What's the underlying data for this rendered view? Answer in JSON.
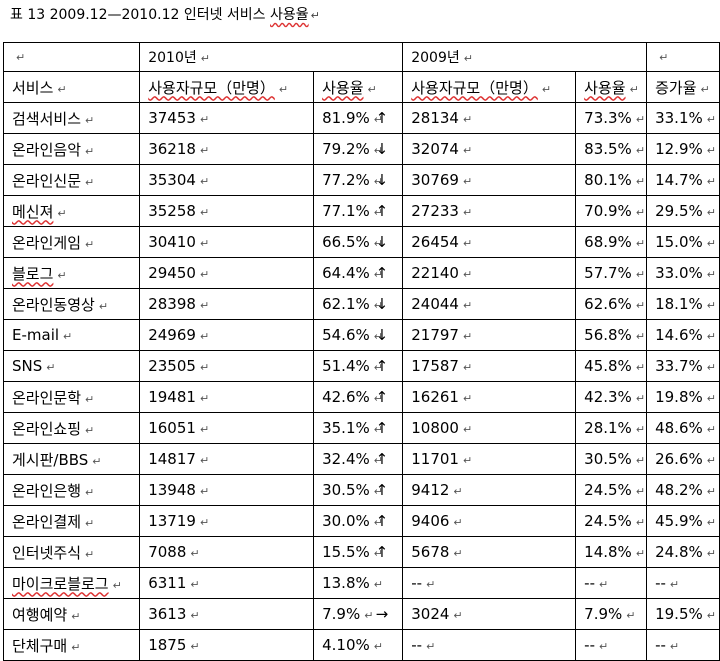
{
  "caption": {
    "prefix": "표  13  2009.12—2010.12   인터넷  서비스  ",
    "underlined": "사용율",
    "mark": "↵"
  },
  "header_top": {
    "blank1": "↵",
    "year_2010": "2010년",
    "year_2009": "2009년",
    "blank2": "↵"
  },
  "columns": [
    "서비스",
    "사용자규모（만명）",
    "사용율",
    "사용자규모（만명）",
    "사용율",
    "증가율"
  ],
  "rows": [
    {
      "service": "검색서비스",
      "users_2010": "37453",
      "rate_2010": "81.9%",
      "arrow": "↑",
      "users_2009": "28134",
      "rate_2009": "73.3%",
      "growth": "33.1%"
    },
    {
      "service": "온라인음악",
      "users_2010": "36218",
      "rate_2010": "79.2%",
      "arrow": "↓",
      "users_2009": "32074",
      "rate_2009": "83.5%",
      "growth": "12.9%"
    },
    {
      "service": "온라인신문",
      "users_2010": "35304",
      "rate_2010": "77.2%",
      "arrow": "↓",
      "users_2009": "30769",
      "rate_2009": "80.1%",
      "growth": "14.7%"
    },
    {
      "service": "메신져",
      "users_2010": "35258",
      "rate_2010": "77.1%",
      "arrow": "↑",
      "users_2009": "27233",
      "rate_2009": "70.9%",
      "growth": "29.5%"
    },
    {
      "service": "온라인게임",
      "users_2010": "30410",
      "rate_2010": "66.5%",
      "arrow": "↓",
      "users_2009": "26454",
      "rate_2009": "68.9%",
      "growth": "15.0%"
    },
    {
      "service": "블로그",
      "users_2010": "29450",
      "rate_2010": "64.4%",
      "arrow": "↑",
      "users_2009": "22140",
      "rate_2009": "57.7%",
      "growth": "33.0%"
    },
    {
      "service": "온라인동영상",
      "users_2010": "28398",
      "rate_2010": "62.1%",
      "arrow": "↓",
      "users_2009": "24044",
      "rate_2009": "62.6%",
      "growth": "18.1%"
    },
    {
      "service": "E-mail",
      "users_2010": "24969",
      "rate_2010": "54.6%",
      "arrow": "↓",
      "users_2009": "21797",
      "rate_2009": "56.8%",
      "growth": "14.6%"
    },
    {
      "service": "SNS",
      "users_2010": "23505",
      "rate_2010": "51.4%",
      "arrow": "↑",
      "users_2009": "17587",
      "rate_2009": "45.8%",
      "growth": "33.7%"
    },
    {
      "service": "온라인문학",
      "users_2010": "19481",
      "rate_2010": "42.6%",
      "arrow": "↑",
      "users_2009": "16261",
      "rate_2009": "42.3%",
      "growth": "19.8%"
    },
    {
      "service": "온라인쇼핑",
      "users_2010": "16051",
      "rate_2010": "35.1%",
      "arrow": "↑",
      "users_2009": "10800",
      "rate_2009": "28.1%",
      "growth": "48.6%"
    },
    {
      "service": "게시판/BBS",
      "users_2010": "14817",
      "rate_2010": "32.4%",
      "arrow": "↑",
      "users_2009": "11701",
      "rate_2009": "30.5%",
      "growth": "26.6%"
    },
    {
      "service": "온라인은행",
      "users_2010": "13948",
      "rate_2010": "30.5%",
      "arrow": "↑",
      "users_2009": "9412",
      "rate_2009": "24.5%",
      "growth": "48.2%"
    },
    {
      "service": "온라인결제",
      "users_2010": "13719",
      "rate_2010": "30.0%",
      "arrow": "↑",
      "users_2009": "9406",
      "rate_2009": "24.5%",
      "growth": "45.9%"
    },
    {
      "service": "인터넷주식",
      "users_2010": "7088",
      "rate_2010": "15.5%",
      "arrow": "↑",
      "users_2009": "5678",
      "rate_2009": "14.8%",
      "growth": "24.8%"
    },
    {
      "service": "마이크로블로그",
      "users_2010": "6311",
      "rate_2010": "13.8%",
      "arrow": "",
      "users_2009": "--",
      "rate_2009": "--",
      "growth": "--"
    },
    {
      "service": "여행예약",
      "users_2010": "3613",
      "rate_2010": "7.9%",
      "arrow": "→",
      "users_2009": "3024",
      "rate_2009": "7.9%",
      "growth": "19.5%"
    },
    {
      "service": "단체구매",
      "users_2010": "1875",
      "rate_2010": "4.10%",
      "arrow": "",
      "users_2009": "--",
      "rate_2009": "--",
      "growth": "--"
    }
  ]
}
